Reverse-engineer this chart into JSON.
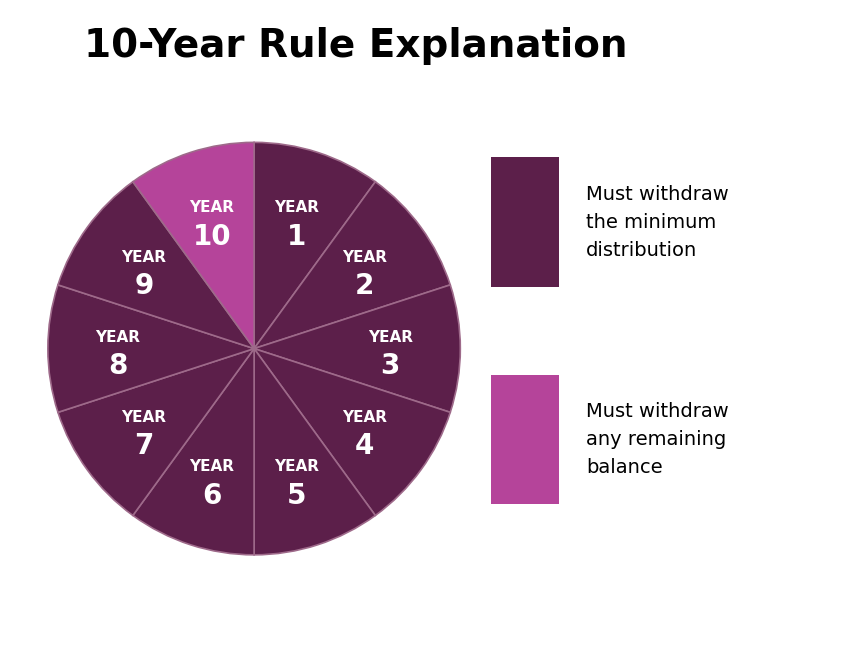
{
  "title": "10-Year Rule Explanation",
  "title_fontsize": 28,
  "title_fontweight": "bold",
  "segments": 10,
  "colors": [
    "#5c1f4a",
    "#5c1f4a",
    "#5c1f4a",
    "#5c1f4a",
    "#5c1f4a",
    "#5c1f4a",
    "#5c1f4a",
    "#5c1f4a",
    "#5c1f4a",
    "#b5449a"
  ],
  "dark_color": "#5c1f4a",
  "bright_color": "#b5449a",
  "edge_color": "#9e6a8a",
  "legend_items": [
    {
      "color": "#5c1f4a",
      "label": "Must withdraw\nthe minimum\ndistribution"
    },
    {
      "color": "#b5449a",
      "label": "Must withdraw\nany remaining\nbalance"
    }
  ],
  "label_color": "#ffffff",
  "label_year_fontsize": 11,
  "label_num_fontsize": 20,
  "background_color": "#ffffff"
}
